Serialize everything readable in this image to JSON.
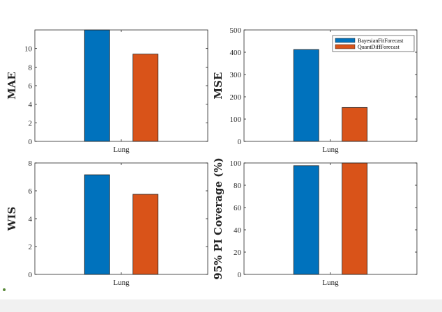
{
  "colors": {
    "BayesianFitForecast": "#0072BD",
    "QuantDiffForecast": "#D95319",
    "axis": "#262626"
  },
  "chart_data": [
    {
      "type": "bar",
      "title": "",
      "categories": [
        "Lung"
      ],
      "ylabel": "MAE",
      "ylim": [
        0,
        12
      ],
      "yticks": [
        "0",
        "2",
        "4",
        "6",
        "8",
        "10"
      ],
      "series": [
        {
          "name": "BayesianFitForecast",
          "values": [
            12.4
          ]
        },
        {
          "name": "QuantDiffForecast",
          "values": [
            9.4
          ]
        }
      ]
    },
    {
      "type": "bar",
      "title": "",
      "categories": [
        "Lung"
      ],
      "ylabel": "MSE",
      "ylim": [
        0,
        500
      ],
      "yticks": [
        "0",
        "100",
        "200",
        "300",
        "400",
        "500"
      ],
      "legend": {
        "location": "top-right",
        "entries": [
          "BayesianFitForecast",
          "QuantDiffForecast"
        ]
      },
      "series": [
        {
          "name": "BayesianFitForecast",
          "values": [
            412
          ]
        },
        {
          "name": "QuantDiffForecast",
          "values": [
            152
          ]
        }
      ]
    },
    {
      "type": "bar",
      "title": "",
      "categories": [
        "Lung"
      ],
      "ylabel": "WIS",
      "ylim": [
        0,
        8
      ],
      "yticks": [
        "0",
        "2",
        "4",
        "6",
        "8"
      ],
      "series": [
        {
          "name": "BayesianFitForecast",
          "values": [
            7.15
          ]
        },
        {
          "name": "QuantDiffForecast",
          "values": [
            5.75
          ]
        }
      ]
    },
    {
      "type": "bar",
      "title": "",
      "categories": [
        "Lung"
      ],
      "ylabel": "95% PI Coverage (%)",
      "ylim": [
        0,
        100
      ],
      "yticks": [
        "0",
        "20",
        "40",
        "60",
        "80",
        "100"
      ],
      "series": [
        {
          "name": "BayesianFitForecast",
          "values": [
            97.6
          ]
        },
        {
          "name": "QuantDiffForecast",
          "values": [
            100
          ]
        }
      ]
    }
  ]
}
